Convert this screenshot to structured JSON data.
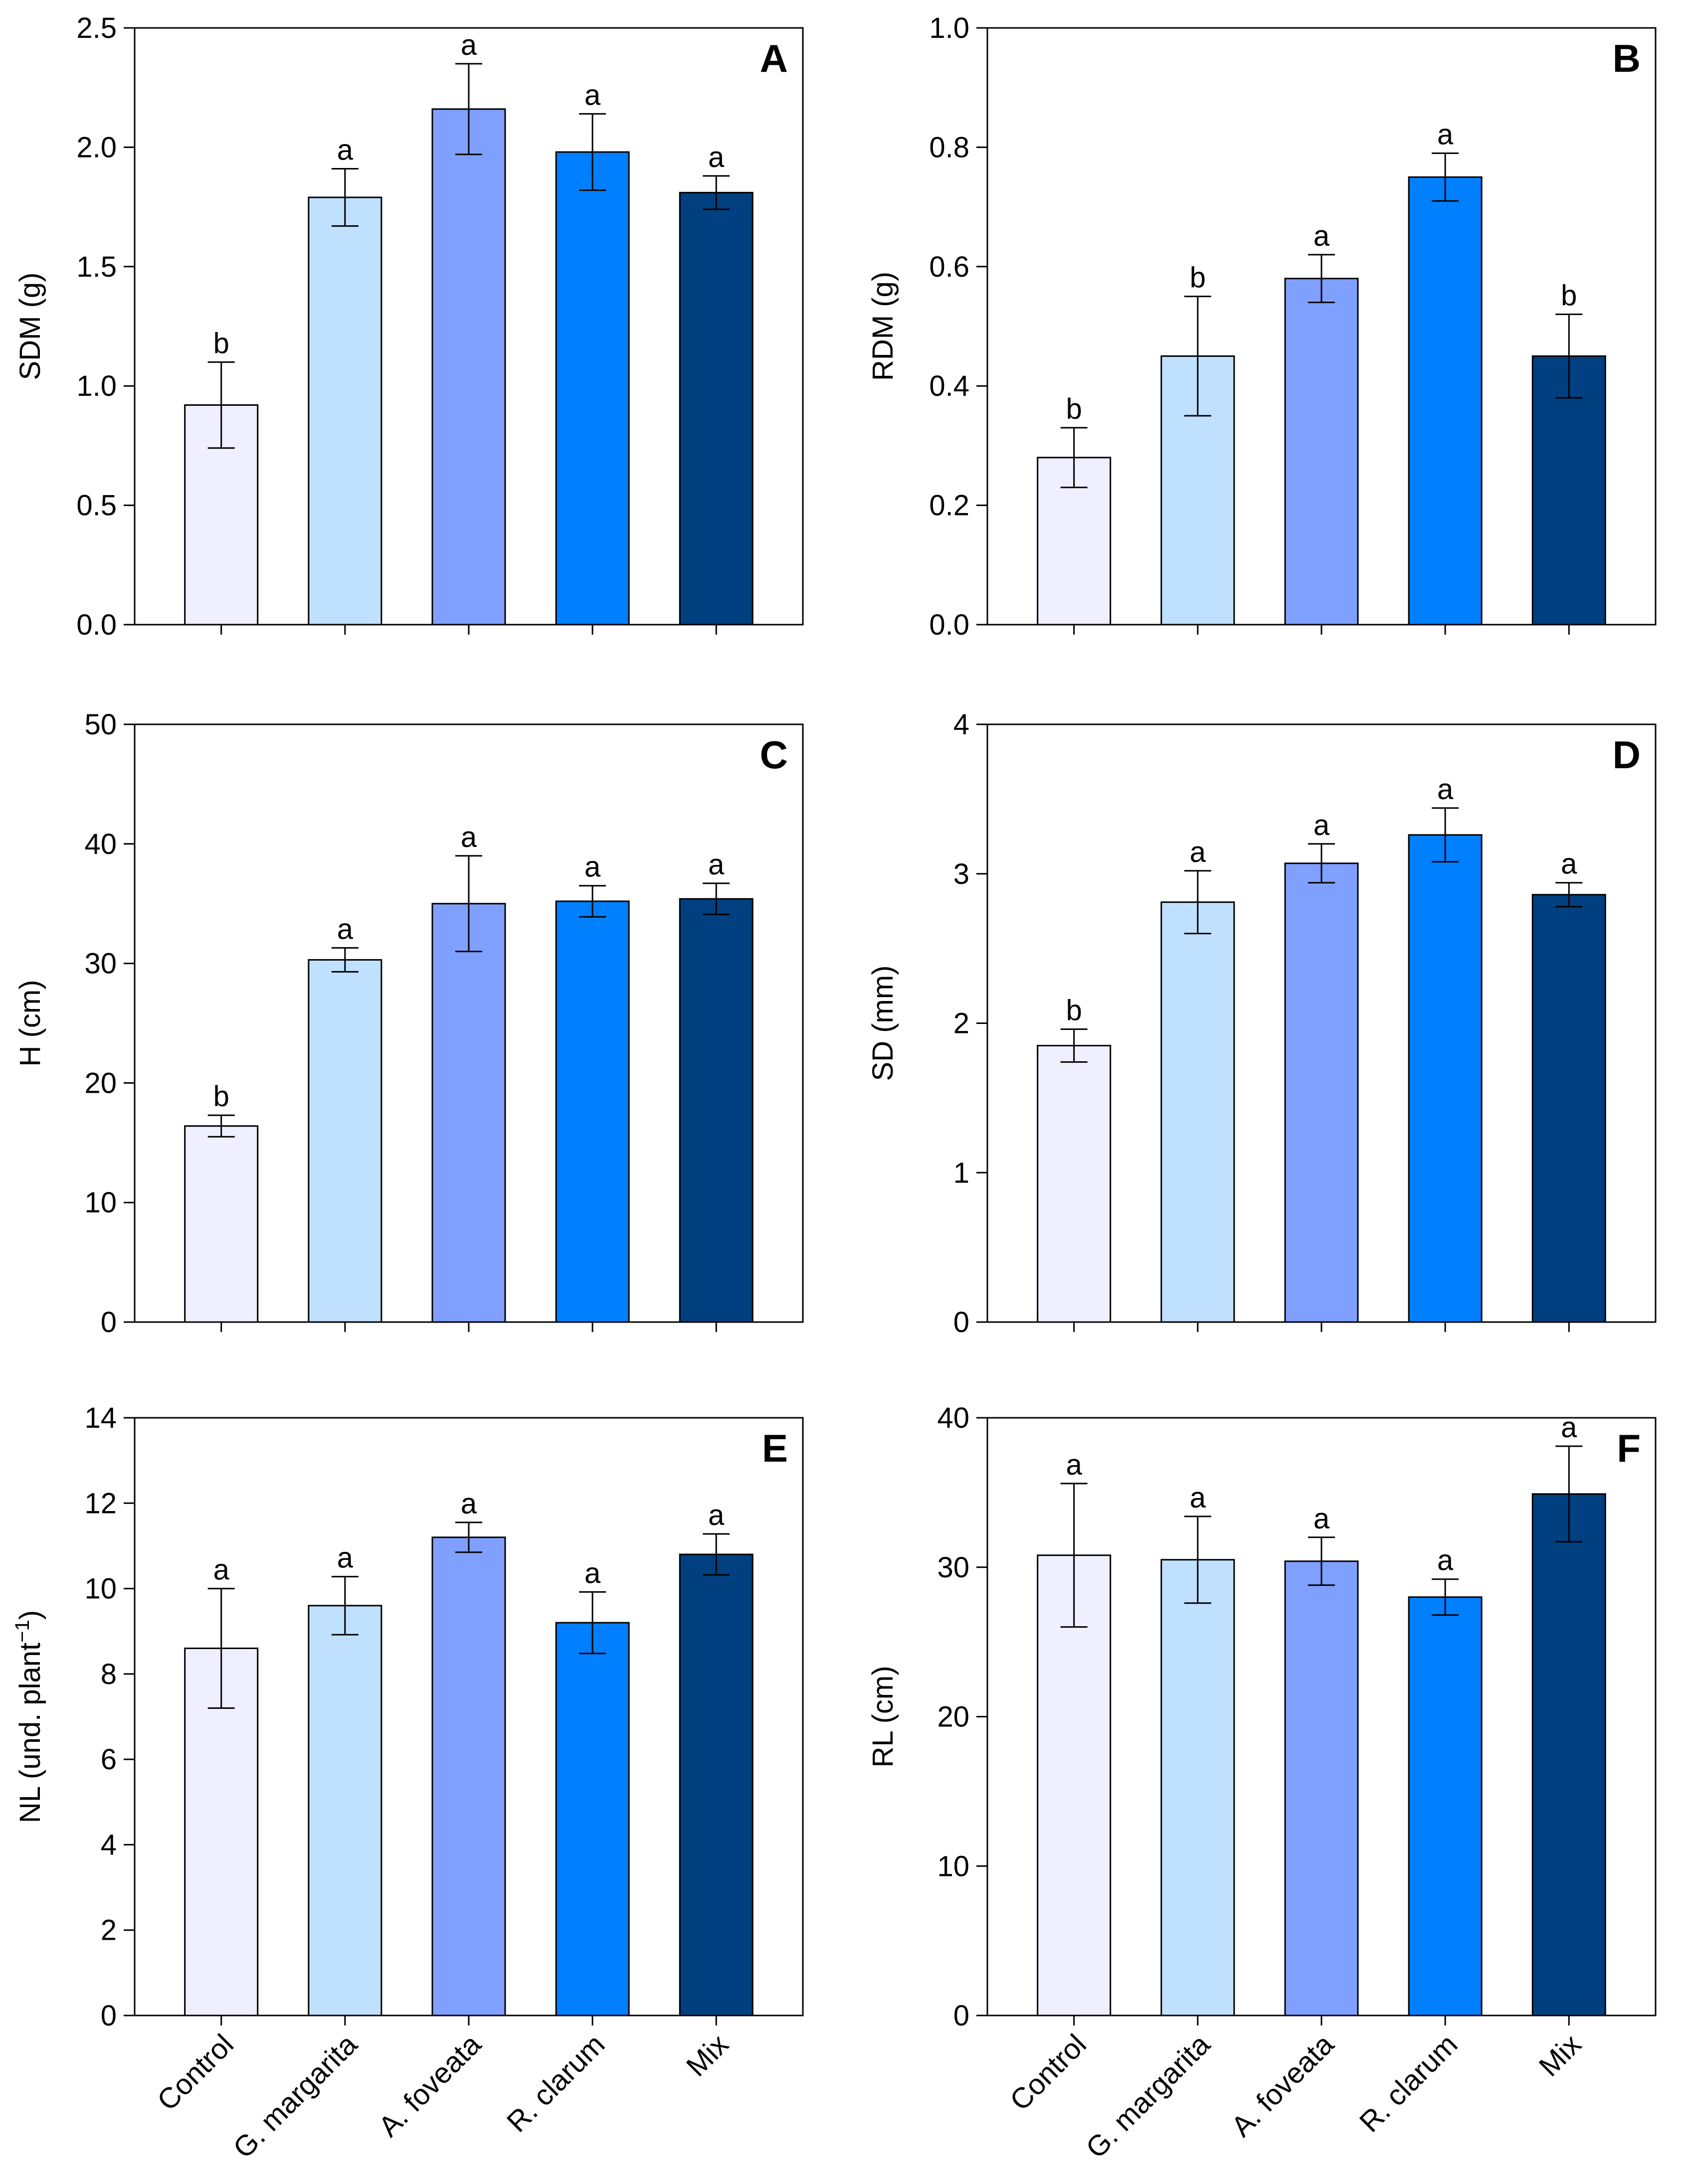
{
  "categories": [
    "Control",
    "G. margarita",
    "A. foveata",
    "R. clarum",
    "Mix"
  ],
  "colors": [
    "#efefff",
    "#c0e0ff",
    "#7fa0ff",
    "#0080ff",
    "#004080"
  ],
  "chart_data": [
    {
      "type": "bar",
      "panel_label": "A",
      "ylabel": "SDM (g)",
      "ylim": [
        0,
        2.5
      ],
      "yticks": [
        "0.0",
        "0.5",
        "1.0",
        "1.5",
        "2.0",
        "2.5"
      ],
      "categories": [
        "Control",
        "G. margarita",
        "A. foveata",
        "R. clarum",
        "Mix"
      ],
      "values": [
        0.92,
        1.79,
        2.16,
        1.98,
        1.81
      ],
      "errors": [
        0.18,
        0.12,
        0.19,
        0.16,
        0.07
      ],
      "letters": [
        "b",
        "a",
        "a",
        "a",
        "a"
      ]
    },
    {
      "type": "bar",
      "panel_label": "B",
      "ylabel": "RDM (g)",
      "ylim": [
        0,
        1.0
      ],
      "yticks": [
        "0.0",
        "0.2",
        "0.4",
        "0.6",
        "0.8",
        "1.0"
      ],
      "categories": [
        "Control",
        "G. margarita",
        "A. foveata",
        "R. clarum",
        "Mix"
      ],
      "values": [
        0.28,
        0.45,
        0.58,
        0.75,
        0.45
      ],
      "errors": [
        0.05,
        0.1,
        0.04,
        0.04,
        0.07
      ],
      "letters": [
        "b",
        "b",
        "a",
        "a",
        "b"
      ]
    },
    {
      "type": "bar",
      "panel_label": "C",
      "ylabel": "H (cm)",
      "ylim": [
        0,
        50
      ],
      "yticks": [
        "0",
        "10",
        "20",
        "30",
        "40",
        "50"
      ],
      "categories": [
        "Control",
        "G. margarita",
        "A. foveata",
        "R. clarum",
        "Mix"
      ],
      "values": [
        16.4,
        30.3,
        35.0,
        35.2,
        35.4
      ],
      "errors": [
        0.9,
        1.0,
        4.0,
        1.3,
        1.3
      ],
      "letters": [
        "b",
        "a",
        "a",
        "a",
        "a"
      ]
    },
    {
      "type": "bar",
      "panel_label": "D",
      "ylabel": "SD (mm)",
      "ylim": [
        0,
        4
      ],
      "yticks": [
        "0",
        "1",
        "2",
        "3",
        "4"
      ],
      "categories": [
        "Control",
        "G. margarita",
        "A. foveata",
        "R. clarum",
        "Mix"
      ],
      "values": [
        1.85,
        2.81,
        3.07,
        3.26,
        2.86
      ],
      "errors": [
        0.11,
        0.21,
        0.13,
        0.18,
        0.08
      ],
      "letters": [
        "b",
        "a",
        "a",
        "a",
        "a"
      ]
    },
    {
      "type": "bar",
      "panel_label": "E",
      "ylabel": "NL (und. plant",
      "ylabel_sup": "−1",
      "ylabel_close": ")",
      "ylim": [
        0,
        14
      ],
      "yticks": [
        "0",
        "2",
        "4",
        "6",
        "8",
        "10",
        "12",
        "14"
      ],
      "categories": [
        "Control",
        "G. margarita",
        "A. foveata",
        "R. clarum",
        "Mix"
      ],
      "values": [
        8.6,
        9.6,
        11.2,
        9.2,
        10.8
      ],
      "errors": [
        1.4,
        0.68,
        0.35,
        0.72,
        0.48
      ],
      "letters": [
        "a",
        "a",
        "a",
        "a",
        "a"
      ]
    },
    {
      "type": "bar",
      "panel_label": "F",
      "ylabel": "RL (cm)",
      "ylim": [
        0,
        40
      ],
      "yticks": [
        "0",
        "10",
        "20",
        "30",
        "40"
      ],
      "categories": [
        "Control",
        "G. margarita",
        "A. foveata",
        "R. clarum",
        "Mix"
      ],
      "values": [
        30.8,
        30.5,
        30.4,
        28.0,
        34.9
      ],
      "errors": [
        4.8,
        2.9,
        1.6,
        1.2,
        3.2
      ],
      "letters": [
        "a",
        "a",
        "a",
        "a",
        "a"
      ]
    }
  ]
}
